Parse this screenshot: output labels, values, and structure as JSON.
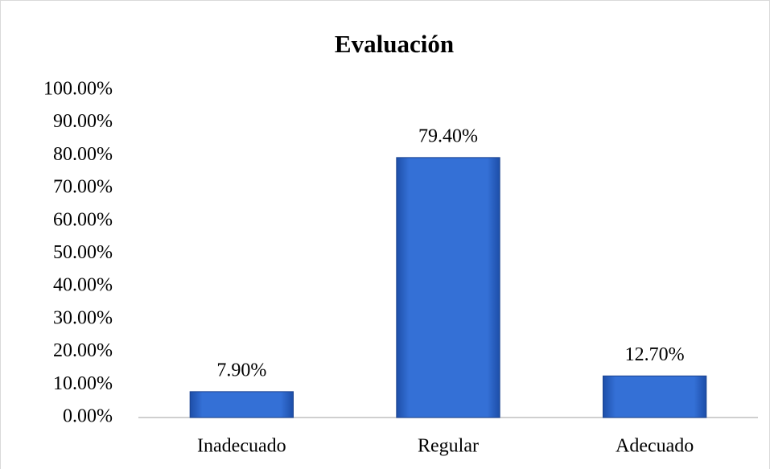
{
  "chart_data": {
    "type": "bar",
    "title": "Evaluación",
    "categories": [
      "Inadecuado",
      "Regular",
      "Adecuado"
    ],
    "values": [
      7.9,
      79.4,
      12.7
    ],
    "value_labels": [
      "7.90%",
      "79.40%",
      "12.70%"
    ],
    "color": "#2f66cc",
    "ylim": [
      0,
      100
    ],
    "yticks": [
      {
        "value": 0,
        "label": "0.00%"
      },
      {
        "value": 10,
        "label": "10.00%"
      },
      {
        "value": 20,
        "label": "20.00%"
      },
      {
        "value": 30,
        "label": "30.00%"
      },
      {
        "value": 40,
        "label": "40.00%"
      },
      {
        "value": 50,
        "label": "50.00%"
      },
      {
        "value": 60,
        "label": "60.00%"
      },
      {
        "value": 70,
        "label": "70.00%"
      },
      {
        "value": 80,
        "label": "80.00%"
      },
      {
        "value": 90,
        "label": "90.00%"
      },
      {
        "value": 100,
        "label": "100.00%"
      }
    ],
    "grid": false
  }
}
